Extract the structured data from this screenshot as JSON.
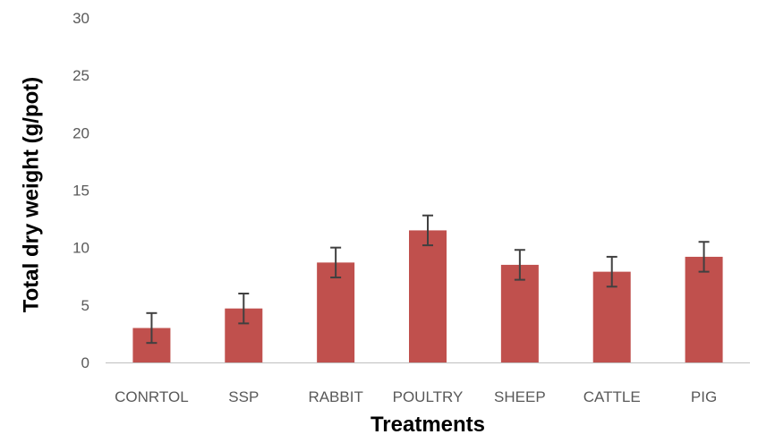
{
  "chart_data": {
    "type": "bar",
    "title": "",
    "xlabel": "Treatments",
    "ylabel": "Total dry weight (g/pot)",
    "categories": [
      "CONRTOL",
      "SSP",
      "RABBIT",
      "POULTRY",
      "SHEEP",
      "CATTLE",
      "PIG"
    ],
    "values": [
      3.0,
      4.7,
      8.7,
      11.5,
      8.5,
      7.9,
      9.2
    ],
    "error": [
      1.3,
      1.3,
      1.3,
      1.3,
      1.3,
      1.3,
      1.3
    ],
    "ylim": [
      0,
      30
    ],
    "yticks": [
      0,
      5,
      10,
      15,
      20,
      25,
      30
    ],
    "grid": false,
    "legend": "none",
    "colors": {
      "bar": "#C0504D",
      "error_bar": "#404040",
      "axis": "#BFBFBF",
      "tick_text": "#595959"
    }
  }
}
